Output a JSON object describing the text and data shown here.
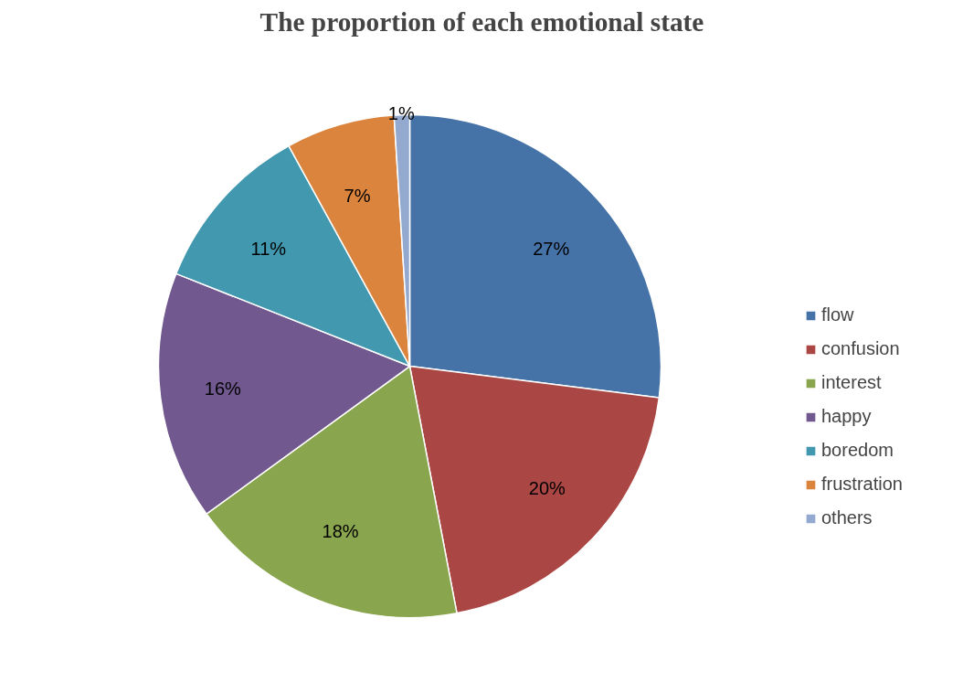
{
  "chart_data": {
    "type": "pie",
    "title": "The proportion of each emotional state",
    "categories": [
      "flow",
      "confusion",
      "interest",
      "happy",
      "boredom",
      "frustration",
      "others"
    ],
    "values": [
      27,
      20,
      18,
      16,
      11,
      7,
      1
    ],
    "colors": [
      "#4572a7",
      "#aa4643",
      "#89a54e",
      "#71588f",
      "#4198af",
      "#db843d",
      "#93a9cf"
    ],
    "value_labels": [
      "27%",
      "20%",
      "18%",
      "16%",
      "11%",
      "7%",
      "1%"
    ],
    "legend": "right"
  }
}
